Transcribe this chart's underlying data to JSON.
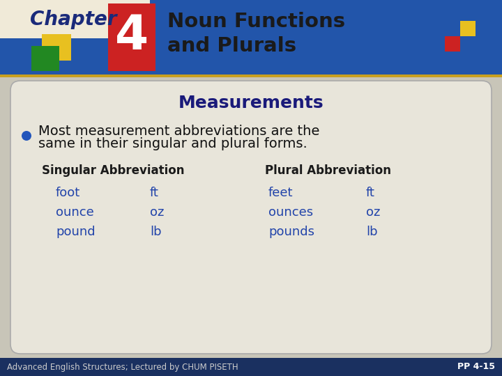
{
  "title_chapter": "Chapter",
  "title_number": "4",
  "title_main": "Noun Functions\nand Plurals",
  "section_title": "Measurements",
  "bullet_text_line1": "Most measurement abbreviations are the",
  "bullet_text_line2": "same in their singular and plural forms.",
  "col_header_singular": "Singular Abbreviation",
  "col_header_plural": "Plural Abbreviation",
  "singular_words": [
    "foot",
    "ounce",
    "pound"
  ],
  "singular_abbrevs": [
    "ft",
    "oz",
    "lb"
  ],
  "plural_words": [
    "feet",
    "ounces",
    "pounds"
  ],
  "plural_abbrevs": [
    "ft",
    "oz",
    "lb"
  ],
  "footer_left": "Advanced English Structures; Lectured by CHUM PISETH",
  "footer_right": "PP 4-15",
  "bg_blue": "#2255aa",
  "bg_header_cream": "#f0ead8",
  "bg_body": "#c8c5b8",
  "bg_card": "#e8e5da",
  "bg_footer": "#1a3060",
  "header_border_top": "#c8a020",
  "chapter_text_color": "#1a2a7a",
  "number_bg": "#cc2222",
  "number_text": "#ffffff",
  "title_text": "#1a1a1a",
  "section_title_color": "#1a1a7a",
  "bullet_dot_color": "#2255bb",
  "bullet_text_color": "#111111",
  "header_color": "#1a1a1a",
  "data_color": "#2244aa",
  "footer_text_color": "#cccccc",
  "footer_right_color": "#ffffff",
  "yellow_sq": "#e8c020",
  "green_sq": "#228822",
  "red_sq_deco": "#cc2222",
  "blue_sq_deco": "#2255aa"
}
